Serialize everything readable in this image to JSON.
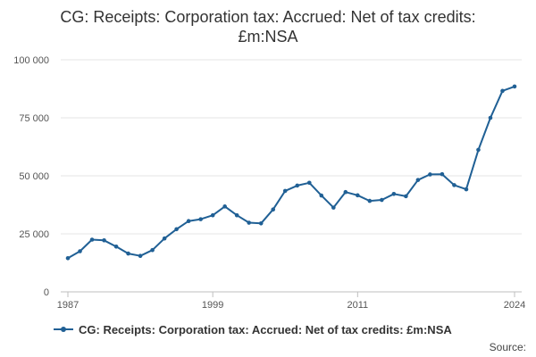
{
  "chart_data": {
    "type": "line",
    "title_line1": "CG: Receipts: Corporation tax: Accrued: Net of tax credits:",
    "title_line2": "£m:NSA",
    "xlabel": "",
    "ylabel": "",
    "x_tick_labels": [
      "1987",
      "1999",
      "2011",
      "2024"
    ],
    "y_tick_labels": [
      "0",
      "25 000",
      "50 000",
      "75 000",
      "100 000"
    ],
    "ylim": [
      0,
      100000
    ],
    "xlim": [
      1987,
      2024
    ],
    "grid": true,
    "legend_position": "bottom",
    "series": [
      {
        "name": "CG: Receipts: Corporation tax: Accrued: Net of tax credits: £m:NSA",
        "color": "#206095",
        "x": [
          1987,
          1988,
          1989,
          1990,
          1991,
          1992,
          1993,
          1994,
          1995,
          1996,
          1997,
          1998,
          1999,
          2000,
          2001,
          2002,
          2003,
          2004,
          2005,
          2006,
          2007,
          2008,
          2009,
          2010,
          2011,
          2012,
          2013,
          2014,
          2015,
          2016,
          2017,
          2018,
          2019,
          2020,
          2021,
          2022,
          2023,
          2024
        ],
        "values": [
          14500,
          17500,
          22500,
          22200,
          19500,
          16500,
          15500,
          18000,
          23000,
          27000,
          30500,
          31300,
          33000,
          36800,
          33000,
          29800,
          29500,
          35500,
          43500,
          45800,
          47000,
          41500,
          36300,
          43000,
          41600,
          39200,
          39600,
          42200,
          41200,
          48200,
          50600,
          50700,
          46000,
          44200,
          61200,
          75000,
          86600,
          88500
        ]
      }
    ]
  },
  "legend": {
    "label": "CG: Receipts: Corporation tax: Accrued: Net of tax credits: £m:NSA"
  },
  "footer": {
    "source_label": "Source:"
  }
}
